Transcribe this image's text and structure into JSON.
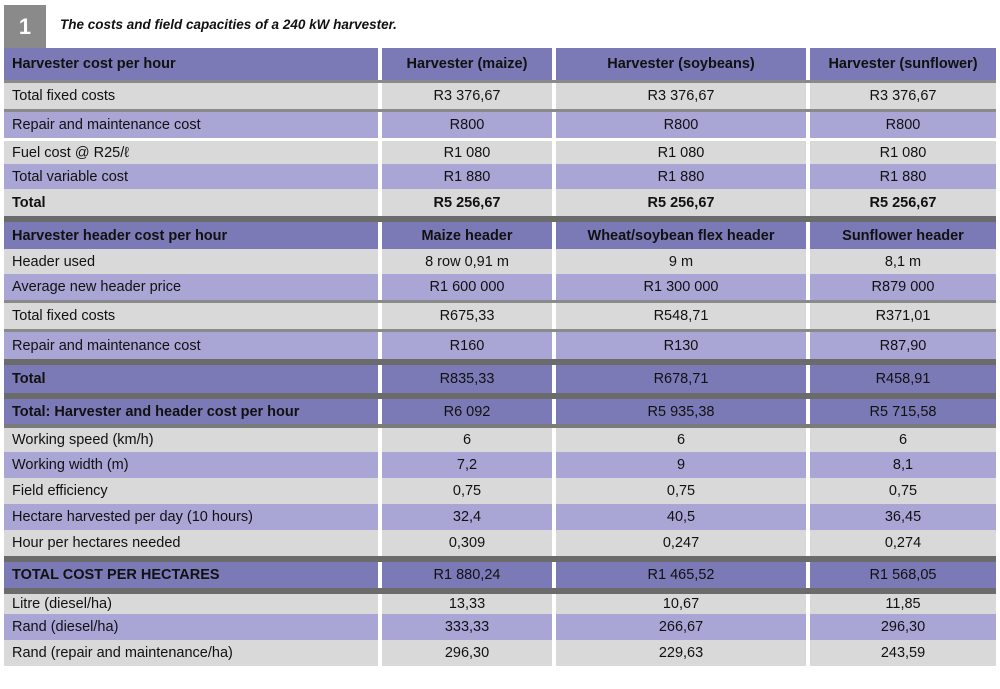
{
  "caption": {
    "number": "1",
    "text": "The costs and field capacities of a 240 kW harvester."
  },
  "rows": [
    {
      "cells": [
        "Harvester cost per hour",
        "Harvester (maize)",
        "Harvester (soybeans)",
        "Harvester (sunflower)"
      ]
    },
    {
      "cells": [
        "Total fixed costs",
        "R3 376,67",
        "R3 376,67",
        "R3 376,67"
      ]
    },
    {
      "cells": [
        "Repair and maintenance cost",
        "R800",
        "R800",
        "R800"
      ]
    },
    {
      "cells": [
        "Fuel cost @ R25/ℓ",
        "R1 080",
        "R1 080",
        "R1 080"
      ]
    },
    {
      "cells": [
        "Total variable cost",
        "R1 880",
        "R1 880",
        "R1 880"
      ]
    },
    {
      "cells": [
        "Total",
        "R5 256,67",
        "R5 256,67",
        "R5 256,67"
      ]
    },
    {
      "cells": [
        "Harvester header cost per hour",
        "Maize header",
        "Wheat/soybean flex header",
        "Sunflower header"
      ]
    },
    {
      "cells": [
        "Header used",
        "8 row 0,91 m",
        "9 m",
        "8,1 m"
      ]
    },
    {
      "cells": [
        "Average new header price",
        "R1 600 000",
        "R1 300 000",
        "R879 000"
      ]
    },
    {
      "cells": [
        "Total fixed costs",
        "R675,33",
        "R548,71",
        "R371,01"
      ]
    },
    {
      "cells": [
        "Repair and maintenance cost",
        "R160",
        "R130",
        "R87,90"
      ]
    },
    {
      "cells": [
        "Total",
        "R835,33",
        "R678,71",
        "R458,91"
      ]
    },
    {
      "cells": [
        "Total: Harvester and header cost per hour",
        "R6 092",
        "R5 935,38",
        "R5 715,58"
      ]
    },
    {
      "cells": [
        "Working speed (km/h)",
        "6",
        "6",
        "6"
      ]
    },
    {
      "cells": [
        "Working width (m)",
        "7,2",
        "9",
        "8,1"
      ]
    },
    {
      "cells": [
        "Field efficiency",
        "0,75",
        "0,75",
        "0,75"
      ]
    },
    {
      "cells": [
        "Hectare harvested per day (10 hours)",
        "32,4",
        "40,5",
        "36,45"
      ]
    },
    {
      "cells": [
        "Hour per hectares needed",
        "0,309",
        "0,247",
        "0,274"
      ]
    },
    {
      "cells": [
        "TOTAL COST PER HECTARES",
        "R1 880,24",
        "R1 465,52",
        "R1 568,05"
      ]
    },
    {
      "cells": [
        "Litre (diesel/ha)",
        "13,33",
        "10,67",
        "11,85"
      ]
    },
    {
      "cells": [
        "Rand (diesel/ha)",
        "333,33",
        "266,67",
        "296,30"
      ]
    },
    {
      "cells": [
        "Rand (repair and maintenance/ha)",
        "296,30",
        "229,63",
        "243,59"
      ]
    }
  ]
}
